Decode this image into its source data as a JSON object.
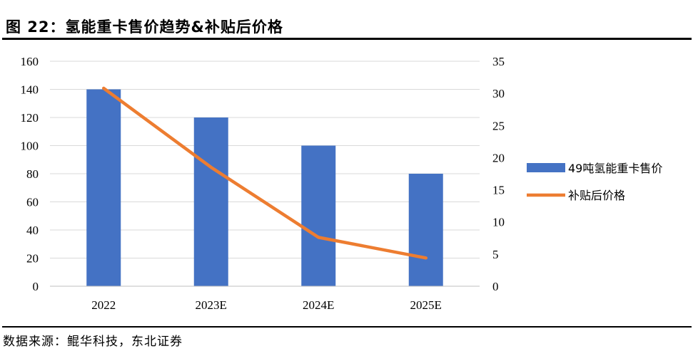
{
  "header": {
    "title": "图 22：氢能重卡售价趋势&补贴后价格"
  },
  "footer": {
    "source": "数据来源：鲲华科技，东北证券"
  },
  "chart_data": {
    "type": "bar",
    "categories": [
      "2022",
      "2023E",
      "2024E",
      "2025E"
    ],
    "series": [
      {
        "name": "49吨氢能重卡售价",
        "type": "bar",
        "axis": "left",
        "values": [
          140,
          120,
          100,
          80
        ],
        "color": "#4472C4"
      },
      {
        "name": "补贴后价格",
        "type": "line",
        "axis": "right",
        "values": [
          30.8,
          18.5,
          7.6,
          4.4
        ],
        "color": "#ED7D31"
      }
    ],
    "y_left": {
      "ylim": [
        0,
        160
      ],
      "ticks": [
        0,
        20,
        40,
        60,
        80,
        100,
        120,
        140,
        160
      ]
    },
    "y_right": {
      "ylim": [
        0,
        35
      ],
      "ticks": [
        0,
        5,
        10,
        15,
        20,
        25,
        30,
        35
      ]
    },
    "grid": true,
    "legend_position": "right"
  }
}
